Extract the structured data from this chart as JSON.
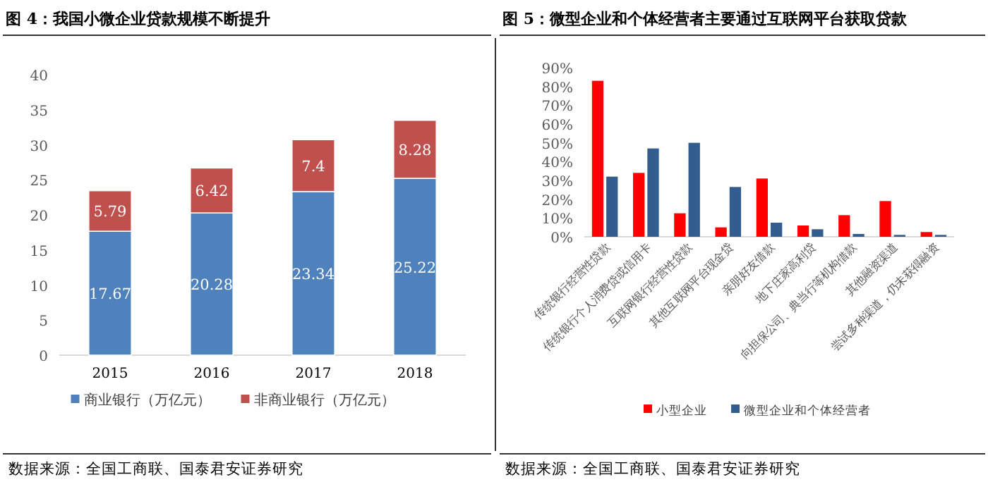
{
  "chart_data": [
    {
      "type": "bar",
      "title": "图 4：我国小微企业贷款规模不断提升",
      "categories": [
        "2015",
        "2016",
        "2017",
        "2018"
      ],
      "stacked": true,
      "data_labels": true,
      "ylim": [
        0,
        40
      ],
      "yticks": [
        0,
        5,
        10,
        15,
        20,
        25,
        30,
        35,
        40
      ],
      "grid": false,
      "legend": "bottom",
      "series": [
        {
          "name": "商业银行（万亿元）",
          "color": "#4f81bd",
          "values": [
            17.67,
            20.28,
            23.34,
            25.22
          ]
        },
        {
          "name": "非商业银行（万亿元）",
          "color": "#c0504d",
          "values": [
            5.79,
            6.42,
            7.4,
            8.28
          ]
        }
      ],
      "annotations": [
        "数据来源：全国工商联、国泰君安证券研究"
      ]
    },
    {
      "type": "bar",
      "title": "图 5：微型企业和个体经营者主要通过互联网平台获取贷款",
      "categories": [
        "传统银行经营性贷款",
        "传统银行个人消费贷或信用卡",
        "互联网银行经营性贷款",
        "其他互联网平台现金贷",
        "亲朋好友借款",
        "地下庄家高利贷",
        "向担保公司、典当行等机构借款",
        "其他融资渠道",
        "尝试多种渠道，仍未获得融资"
      ],
      "ylim": [
        0,
        90
      ],
      "yticks": [
        {
          "value": 0,
          "label": "0%"
        },
        {
          "value": 10,
          "label": "10%"
        },
        {
          "value": 20,
          "label": "20%"
        },
        {
          "value": 30,
          "label": "30%"
        },
        {
          "value": 40,
          "label": "40%"
        },
        {
          "value": 50,
          "label": "50%"
        },
        {
          "value": 60,
          "label": "60%"
        },
        {
          "value": 70,
          "label": "70%"
        },
        {
          "value": 80,
          "label": "80%"
        },
        {
          "value": 90,
          "label": "90%"
        }
      ],
      "grid": false,
      "legend": "bottom",
      "series": [
        {
          "name": "小型企业",
          "color": "#ff0000",
          "values": [
            83,
            34,
            12.5,
            5,
            31,
            6,
            11.5,
            19,
            2.5
          ]
        },
        {
          "name": "微型企业和个体经营者",
          "color": "#335c8f",
          "values": [
            32,
            47,
            50,
            26.5,
            7.5,
            4,
            1.5,
            1,
            1
          ]
        }
      ],
      "annotations": [
        "数据来源：全国工商联、国泰君安证券研究"
      ]
    }
  ]
}
